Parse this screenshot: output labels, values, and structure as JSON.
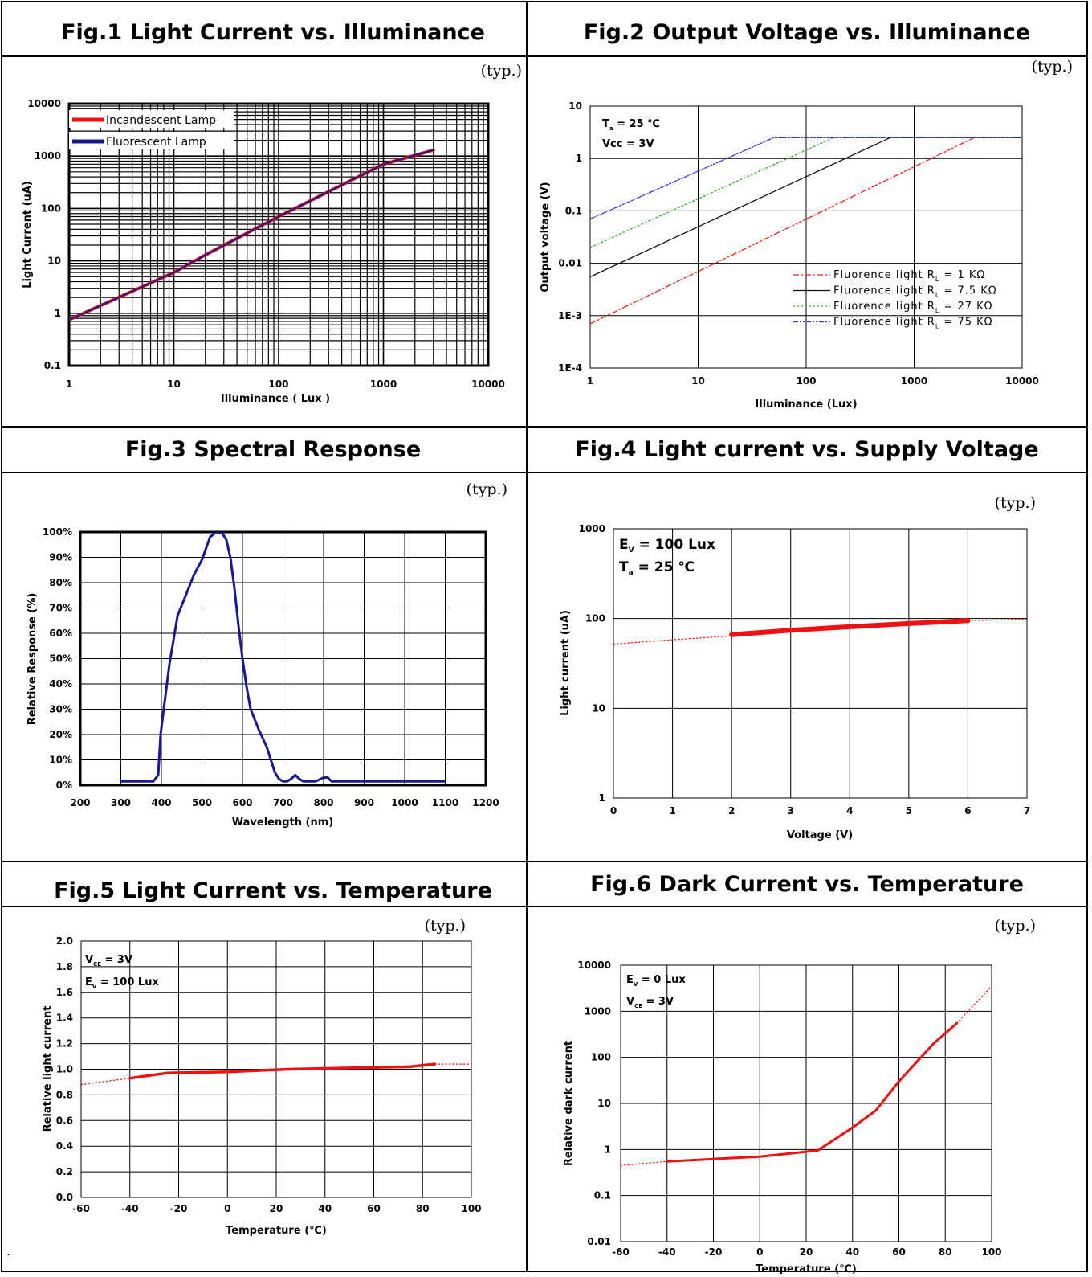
{
  "panels": [
    {
      "figure_title": "Fig.1   Light Current vs. Illuminance",
      "typ_label": "(typ.)"
    },
    {
      "figure_title": "Fig.2   Output Voltage vs. Illuminance",
      "typ_label": "(typ.)"
    },
    {
      "figure_title": "Fig.3   Spectral Response",
      "typ_label": "(typ.)"
    },
    {
      "figure_title": "Fig.4   Light current vs. Supply Voltage",
      "typ_label": "(typ.)"
    },
    {
      "figure_title": "Fig.5   Light Current vs. Temperature",
      "typ_label": "(typ.)"
    },
    {
      "figure_title": "Fig.6   Dark Current vs. Temperature",
      "typ_label": "(typ.)"
    }
  ],
  "footnote_mark": ".",
  "chart_data": [
    {
      "type": "line",
      "xlabel": "Illuminance ( Lux )",
      "ylabel": "Light Current (uA)",
      "xscale": "log",
      "yscale": "log",
      "xlim": [
        1,
        10000
      ],
      "ylim": [
        0.1,
        10000
      ],
      "x_ticks": [
        "1",
        "10",
        "100",
        "1000",
        "10000"
      ],
      "y_ticks": [
        "0.1",
        "1",
        "10",
        "100",
        "1000",
        "10000"
      ],
      "grid": true,
      "legend": "top-left",
      "series": [
        {
          "name": "Incandescent Lamp",
          "color": "#ee1111",
          "x": [
            1,
            10,
            20,
            100,
            1000,
            3000
          ],
          "y": [
            0.75,
            6,
            13,
            70,
            700,
            1300
          ]
        },
        {
          "name": "Fluorescent Lamp",
          "color": "#1a1a8c",
          "x": [
            1,
            10,
            20,
            100,
            1000,
            3000
          ],
          "y": [
            0.75,
            6,
            13,
            70,
            700,
            1300
          ]
        }
      ]
    },
    {
      "type": "line",
      "xlabel": "Illuminance (Lux)",
      "ylabel": "Output voltage (V)",
      "xscale": "log",
      "yscale": "log",
      "xlim": [
        1,
        10000
      ],
      "ylim": [
        0.0001,
        10
      ],
      "x_ticks": [
        "1",
        "10",
        "100",
        "1000",
        "10000"
      ],
      "y_ticks": [
        "1E-4",
        "1E-3",
        "0.01",
        "0.1",
        "1",
        "10"
      ],
      "annotations": [
        {
          "main": "T",
          "sub": "a",
          "rest": " = 25 ℃"
        },
        {
          "main": "Vcc = 3V",
          "sub": "",
          "rest": ""
        }
      ],
      "grid": true,
      "legend": "bottom-right",
      "series": [
        {
          "name": "Fluorence light R",
          "sub": "L",
          "tail": " = 1 KΩ",
          "color": "#ee2222",
          "dash": "7 3 2 3",
          "x": [
            1,
            3600,
            10000
          ],
          "y": [
            0.0007,
            2.5,
            2.5
          ]
        },
        {
          "name": "Fluorence light R",
          "sub": "L",
          "tail": " = 7.5 KΩ",
          "color": "#111111",
          "dash": "",
          "x": [
            1,
            600,
            10000
          ],
          "y": [
            0.0055,
            2.5,
            2.5
          ]
        },
        {
          "name": "Fluorence light R",
          "sub": "L",
          "tail": " = 27 KΩ",
          "color": "#33aa33",
          "dash": "2 3",
          "x": [
            1,
            180,
            10000
          ],
          "y": [
            0.02,
            2.5,
            2.5
          ]
        },
        {
          "name": "Fluorence light R",
          "sub": "L",
          "tail": " = 75 KΩ",
          "color": "#3333dd",
          "dash": "6 2 2 2 2 2",
          "x": [
            1,
            50,
            10000
          ],
          "y": [
            0.07,
            2.5,
            2.5
          ]
        }
      ]
    },
    {
      "type": "line",
      "xlabel": "Wavelength (nm)",
      "ylabel": "Relative Response (%)",
      "xlim": [
        200,
        1200
      ],
      "ylim": [
        0,
        100
      ],
      "x_ticks": [
        "200",
        "300",
        "400",
        "500",
        "600",
        "700",
        "800",
        "900",
        "1000",
        "1100",
        "1200"
      ],
      "y_ticks": [
        "0%",
        "10%",
        "20%",
        "30%",
        "40%",
        "50%",
        "60%",
        "70%",
        "80%",
        "90%",
        "100%"
      ],
      "grid": true,
      "series": [
        {
          "color": "#1a1a8c",
          "x": [
            300,
            340,
            380,
            392,
            398,
            405,
            420,
            440,
            460,
            480,
            500,
            520,
            535,
            550,
            560,
            570,
            580,
            590,
            600,
            610,
            620,
            640,
            660,
            680,
            690,
            700,
            710,
            720,
            730,
            740,
            750,
            760,
            780,
            800,
            810,
            820,
            840,
            860,
            900,
            950,
            1000,
            1050,
            1100
          ],
          "y": [
            1.5,
            1.5,
            1.5,
            4,
            20,
            29,
            48,
            67,
            75,
            83,
            89,
            98,
            100,
            99.5,
            97,
            90,
            78,
            63,
            50,
            39,
            30,
            22,
            15,
            5,
            2.5,
            1.5,
            1.5,
            2.5,
            4,
            2.5,
            1.5,
            1.5,
            1.5,
            3,
            3,
            1.5,
            1.5,
            1.5,
            1.5,
            1.5,
            1.5,
            1.5,
            1.5
          ]
        }
      ]
    },
    {
      "type": "line",
      "xlabel": "Voltage (V)",
      "ylabel": "Light current (uA)",
      "yscale": "log",
      "xlim": [
        0,
        7
      ],
      "ylim": [
        1,
        1000
      ],
      "x_ticks": [
        "0",
        "1",
        "2",
        "3",
        "4",
        "5",
        "6",
        "7"
      ],
      "y_ticks": [
        "1",
        "10",
        "100",
        "1000"
      ],
      "annotations": [
        {
          "main": "E",
          "sub": "V",
          "rest": " = 100 Lux"
        },
        {
          "main": "T",
          "sub": "a",
          "rest": " = 25 ℃"
        }
      ],
      "grid": true,
      "series": [
        {
          "color": "#ee1111",
          "style": "dotted",
          "x": [
            0,
            1,
            2
          ],
          "y": [
            52,
            58,
            64
          ]
        },
        {
          "color": "#ee1111",
          "style": "solid",
          "x": [
            2,
            3,
            4,
            5,
            6
          ],
          "y": [
            66,
            74,
            81,
            88,
            95
          ]
        },
        {
          "color": "#ee1111",
          "style": "dotted",
          "x": [
            6,
            7
          ],
          "y": [
            95,
            98
          ]
        }
      ]
    },
    {
      "type": "line",
      "xlabel": "Temperature (℃)",
      "ylabel": "Relative light current",
      "xlim": [
        -60,
        100
      ],
      "ylim": [
        0,
        2.0
      ],
      "x_ticks": [
        "-60",
        "-40",
        "-20",
        "0",
        "20",
        "40",
        "60",
        "80",
        "100"
      ],
      "y_ticks": [
        "0.0",
        "0.2",
        "0.4",
        "0.6",
        "0.8",
        "1.0",
        "1.2",
        "1.4",
        "1.6",
        "1.8",
        "2.0"
      ],
      "annotations": [
        {
          "main": "V",
          "sub": "CE",
          "rest": " = 3V"
        },
        {
          "main": "E",
          "sub": "V",
          "rest": " = 100 Lux"
        }
      ],
      "grid": true,
      "series": [
        {
          "color": "#ee1111",
          "style": "dotted",
          "x": [
            -60,
            -40
          ],
          "y": [
            0.88,
            0.93
          ]
        },
        {
          "color": "#ee1111",
          "style": "solid",
          "x": [
            -40,
            -25,
            0,
            25,
            50,
            75,
            85
          ],
          "y": [
            0.93,
            0.97,
            0.98,
            1.0,
            1.01,
            1.02,
            1.04
          ]
        },
        {
          "color": "#ee1111",
          "style": "dotted",
          "x": [
            85,
            100
          ],
          "y": [
            1.04,
            1.04
          ]
        }
      ]
    },
    {
      "type": "line",
      "xlabel": "Temperature (℃)",
      "ylabel": "Relative dark current",
      "yscale": "log",
      "xlim": [
        -60,
        100
      ],
      "ylim": [
        0.01,
        10000
      ],
      "x_ticks": [
        "-60",
        "-40",
        "-20",
        "0",
        "20",
        "40",
        "60",
        "80",
        "100"
      ],
      "y_ticks": [
        "0.01",
        "0.1",
        "1",
        "10",
        "100",
        "1000",
        "10000"
      ],
      "annotations": [
        {
          "main": "E",
          "sub": "V",
          "rest": " = 0 Lux"
        },
        {
          "main": "V",
          "sub": "CE",
          "rest": " = 3V"
        }
      ],
      "grid": true,
      "series": [
        {
          "color": "#ee1111",
          "style": "dotted",
          "x": [
            -60,
            -40
          ],
          "y": [
            0.45,
            0.55
          ]
        },
        {
          "color": "#ee1111",
          "style": "solid",
          "x": [
            -40,
            -20,
            0,
            25,
            40,
            50,
            60,
            75,
            85
          ],
          "y": [
            0.55,
            0.62,
            0.7,
            0.95,
            3,
            7,
            30,
            200,
            550
          ]
        },
        {
          "color": "#ee1111",
          "style": "dotted",
          "x": [
            85,
            100
          ],
          "y": [
            550,
            3500
          ]
        }
      ]
    }
  ]
}
